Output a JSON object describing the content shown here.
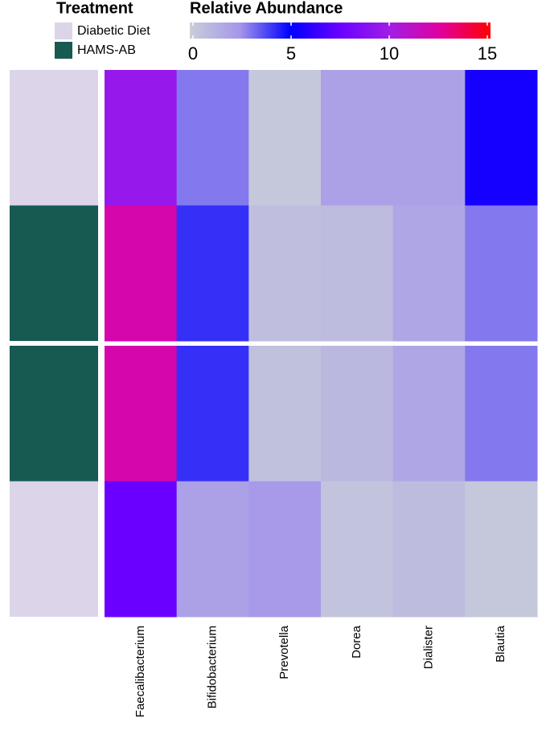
{
  "chart_data": {
    "type": "heatmap",
    "columns": [
      "Faecalibacterium",
      "Bifidobacterium",
      "Prevotella",
      "Dorea",
      "Dialister",
      "Blautia"
    ],
    "values": [
      [
        9.5,
        3,
        0.3,
        2,
        2,
        5.5
      ],
      [
        12,
        4.2,
        0.7,
        0.8,
        1.8,
        3
      ],
      [
        12,
        4.2,
        0.6,
        1,
        1.8,
        3
      ],
      [
        7.5,
        2,
        2.3,
        0.5,
        0.8,
        0.3
      ]
    ],
    "colorbar_title": "Relative Abundance",
    "clim": [
      0,
      15
    ],
    "cticks": [
      0,
      5,
      10,
      15
    ],
    "colors": [
      "#c9ced9",
      "#a596ea",
      "#0000ff",
      "#6a00ff",
      "#a21ee6",
      "#e0009e",
      "#ff0000"
    ],
    "treatment": {
      "title": "Treatment",
      "levels": [
        {
          "name": "Diabetic Diet",
          "color": "#dcd4e8"
        },
        {
          "name": "HAMS-AB",
          "color": "#165a52"
        }
      ]
    },
    "row_groups": [
      0,
      1,
      1,
      0
    ]
  }
}
